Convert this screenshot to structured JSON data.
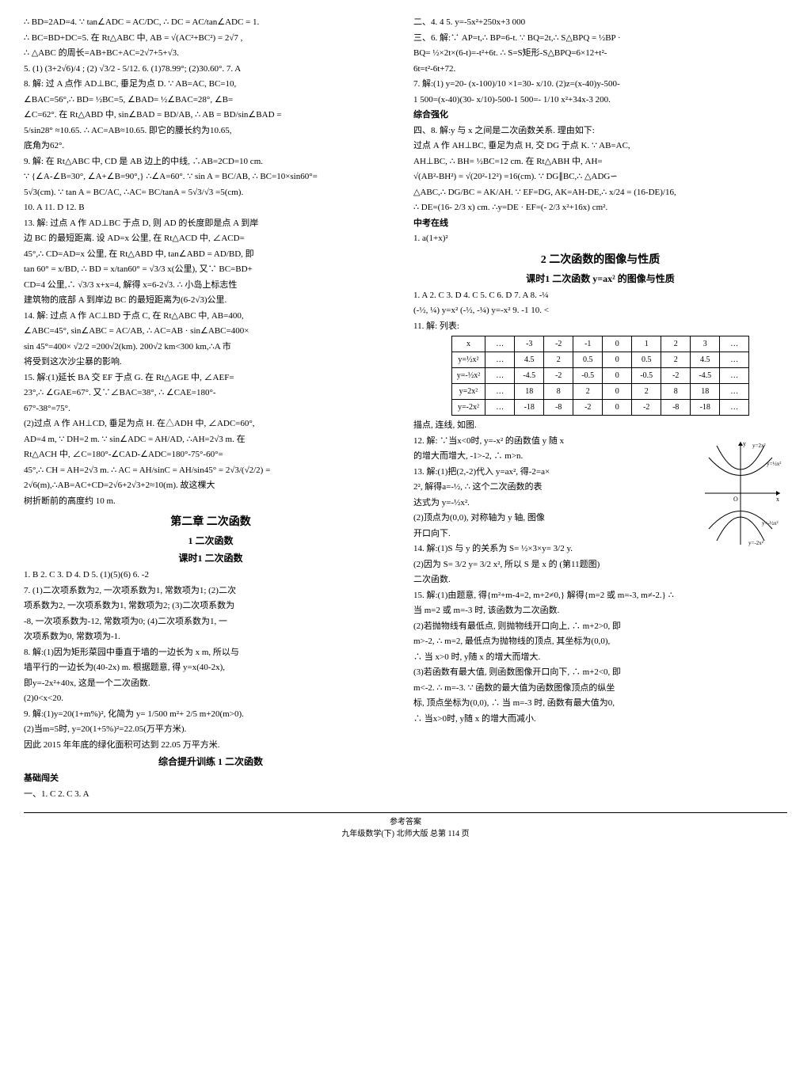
{
  "left": {
    "l1": "∴ BD=2AD=4. ∵ tan∠ADC = AC/DC, ∴ DC = AC/tan∠ADC = 1.",
    "l2": "∴ BC=BD+DC=5. 在 Rt△ABC 中, AB = √(AC²+BC²) = 2√7 ,",
    "l3": "∴ △ABC 的周长=AB+BC+AC=2√7+5+√3.",
    "l4": "5. (1) (3+2√6)/4 ; (2) √3/2 - 5/12.   6. (1)78.99°; (2)30.60°.   7. A",
    "l5": "8. 解: 过 A 点作 AD⊥BC, 垂足为点 D. ∵ AB=AC, BC=10,",
    "l6": "∠BAC=56°,∴ BD= ½BC=5, ∠BAD= ½∠BAC=28°, ∠B=",
    "l7": "∠C=62°. 在 Rt△ABD 中, sin∠BAD = BD/AB, ∴ AB = BD/sin∠BAD =",
    "l8": "5/sin28° ≈10.65. ∴ AC=AB≈10.65. 即它的腰长约为10.65,",
    "l9": "底角为62°.",
    "l10": "9. 解: 在 Rt△ABC 中, CD 是 AB 边上的中线, ∴AB=2CD=10 cm.",
    "l11": "∵ {∠A-∠B=30°, ∠A+∠B=90°,} ∴∠A=60°. ∵ sin A = BC/AB, ∴ BC=10×sin60°=",
    "l12": "5√3(cm). ∵ tan A = BC/AC, ∴AC= BC/tanA = 5√3/√3 =5(cm).",
    "l13": "10. A   11. D   12. B",
    "l14": "13. 解: 过点 A 作 AD⊥BC 于点 D, 则 AD 的长度即是点 A 到岸",
    "l15": "边 BC 的最短距离. 设 AD=x 公里, 在 Rt△ACD 中, ∠ACD=",
    "l16": "45°,∴ CD=AD=x 公里, 在 Rt△ABD 中, tan∠ABD = AD/BD, 即",
    "l17": "tan 60° = x/BD, ∴ BD = x/tan60° = √3/3 x(公里), 又∵ BC=BD+",
    "l18": "CD=4 公里,∴ √3/3 x+x=4, 解得 x=6-2√3. ∴ 小岛上标志性",
    "l19": "建筑物的底部 A 到岸边 BC 的最短距离为(6-2√3)公里.",
    "l20": "14. 解: 过点 A 作 AC⊥BD 于点 C, 在 Rt△ABC 中, AB=400,",
    "l21": "∠ABC=45°, sin∠ABC = AC/AB, ∴ AC=AB · sin∠ABC=400×",
    "l22": "sin 45°=400× √2/2 =200√2(km). 200√2 km<300 km,∴A 市",
    "l23": "将受到这次沙尘暴的影响.",
    "l24": "15. 解:(1)延长 BA 交 EF 于点 G. 在 Rt△AGE 中, ∠AEF=",
    "l25": "23°,∴ ∠GAE=67°. 又∵∠BAC=38°, ∴ ∠CAE=180°-",
    "l26": "67°-38°=75°.",
    "l27": "(2)过点 A 作 AH⊥CD, 垂足为点 H. 在△ADH 中, ∠ADC=60°,",
    "l28": "AD=4 m, ∵ DH=2 m. ∵ sin∠ADC = AH/AD, ∴AH=2√3 m. 在",
    "l29": "Rt△ACH 中, ∠C=180°-∠CAD-∠ADC=180°-75°-60°=",
    "l30": "45°,∴ CH = AH=2√3 m. ∴ AC = AH/sinC = AH/sin45° = 2√3/(√2/2) =",
    "l31": "2√6(m),∴AB=AC+CD=2√6+2√3+2≈10(m). 故这棵大",
    "l32": "树折断前的高度约 10 m.",
    "section2": "第二章  二次函数",
    "sub1": "1  二次函数",
    "sub2": "课时1  二次函数",
    "l33": "1. B   2. C   3. D   4. D   5. (1)(5)(6)   6. -2",
    "l34": "7. (1)二次项系数为2, 一次项系数为1, 常数项为1; (2)二次",
    "l35": "项系数为2, 一次项系数为1, 常数项为2; (3)二次项系数为",
    "l36": "-8, 一次项系数为-12, 常数项为0; (4)二次项系数为1, 一",
    "l37": "次项系数为0, 常数项为-1.",
    "l38": "8. 解:(1)因为矩形菜园中垂直于墙的一边长为 x m, 所以与",
    "l39": "墙平行的一边长为(40-2x) m. 根据题意, 得 y=x(40-2x),",
    "l40": "即y=-2x²+40x, 这是一个二次函数.",
    "l41": "(2)0<x<20.",
    "l42": "9. 解:(1)y=20(1+m%)², 化简为 y= 1/500 m²+ 2/5 m+20(m>0).",
    "l43": "(2)当m=5时, y=20(1+5%)²=22.05(万平方米).",
    "l44": "因此 2015 年年底的绿化面积可达到 22.05 万平方米.",
    "sub3": "综合提升训练  1  二次函数",
    "sub4": "基础闯关",
    "l45": "一、1. C   2. C   3. A"
  },
  "right": {
    "r1": "二、4. 4   5. y=-5x²+250x+3 000",
    "r2": "三、6. 解:∵ AP=t,∴ BP=6-t. ∵ BQ=2t,∴ S△BPQ = ½BP ·",
    "r3": "BQ= ½×2t×(6-t)=-t²+6t. ∴ S=S矩形-S△BPQ=6×12+t²-",
    "r4": "6t=t²-6t+72.",
    "r5": "7. 解:(1) y=20- (x-100)/10 ×1=30- x/10. (2)z=(x-40)y-500-",
    "r6": "1 500=(x-40)(30- x/10)-500-1 500=- 1/10 x²+34x-3 200.",
    "sub1": "综合强化",
    "r7": "四、8. 解:y 与 x 之间是二次函数关系. 理由如下:",
    "r8": "过点 A 作 AH⊥BC, 垂足为点 H, 交 DG 于点 K. ∵ AB=AC,",
    "r9": "AH⊥BC, ∴ BH= ½BC=12 cm. 在 Rt△ABH 中, AH=",
    "r10": "√(AB²-BH²) = √(20²-12²) =16(cm). ∵ DG∥BC,∴ △ADG∽",
    "r11": "△ABC,∴ DG/BC = AK/AH. ∵ EF=DG, AK=AH-DE,∴ x/24 = (16-DE)/16,",
    "r12": "∴ DE=(16- 2/3 x) cm. ∴y=DE · EF=(- 2/3 x²+16x) cm².",
    "sub2": "中考在线",
    "r13": "1. a(1+x)²",
    "section2": "2  二次函数的图像与性质",
    "sub3": "课时1  二次函数 y=ax² 的图像与性质",
    "r14": "1. A   2. C   3. D   4. C   5. C   6. D   7. A   8. -¼",
    "r15": "(-½, ¼)  y=x²  (-½, -¼)  y=-x²   9. -1   10. <",
    "r16": "11. 解: 列表:",
    "table": {
      "headers": [
        "x",
        "…",
        "-3",
        "-2",
        "-1",
        "0",
        "1",
        "2",
        "3",
        "…"
      ],
      "rows": [
        [
          "y=½x²",
          "…",
          "4.5",
          "2",
          "0.5",
          "0",
          "0.5",
          "2",
          "4.5",
          "…"
        ],
        [
          "y=-½x²",
          "…",
          "-4.5",
          "-2",
          "-0.5",
          "0",
          "-0.5",
          "-2",
          "-4.5",
          "…"
        ],
        [
          "y=2x²",
          "…",
          "18",
          "8",
          "2",
          "0",
          "2",
          "8",
          "18",
          "…"
        ],
        [
          "y=-2x²",
          "…",
          "-18",
          "-8",
          "-2",
          "0",
          "-2",
          "-8",
          "-18",
          "…"
        ]
      ]
    },
    "r17": "描点, 连线, 如图.",
    "r18": "12. 解: ∵当x<0时, y=-x² 的函数值 y 随 x",
    "r19": "的增大而增大, -1>-2, ∴ m>n.",
    "r20": "13. 解:(1)把(2,-2)代入 y=ax², 得-2=a×",
    "r21": "2², 解得a=-½, ∴ 这个二次函数的表",
    "r22": "达式为 y=-½x².",
    "r23": "(2)顶点为(0,0), 对称轴为 y 轴, 图像",
    "r24": "开口向下.",
    "r25": "14. 解:(1)S 与 y 的关系为 S= ½×3×y= 3/2 y.",
    "r26": "(2)因为 S= 3/2 y= 3/2 x², 所以 S 是 x 的  (第11题图)",
    "r27": "二次函数.",
    "r28": "15. 解:(1)由题意, 得{m²+m-4=2, m+2≠0,} 解得{m=2 或 m=-3, m≠-2.} ∴",
    "r29": "当 m=2 或 m=-3 时, 该函数为二次函数.",
    "r30": "(2)若抛物线有最低点, 则抛物线开口向上, ∴ m+2>0, 即",
    "r31": "m>-2, ∴ m=2, 最低点为抛物线的顶点, 其坐标为(0,0),",
    "r32": "∴ 当 x>0 时, y随 x 的增大而增大.",
    "r33": "(3)若函数有最大值, 则函数图像开口向下, ∴ m+2<0, 即",
    "r34": "m<-2. ∴ m=-3. ∵ 函数的最大值为函数图像顶点的纵坐",
    "r35": "标, 顶点坐标为(0,0), ∴ 当 m=-3 时, 函数有最大值为0,",
    "r36": "∴ 当x>0时, y随 x 的增大而减小."
  },
  "graph": {
    "labels": [
      "y=2x²",
      "y=½x²",
      "O",
      "x",
      "y=-½x²",
      "y=-2x²",
      "y"
    ],
    "colors": {
      "axis": "#000000",
      "curve": "#000000"
    }
  },
  "footer": {
    "line1": "参考答案",
    "line2": "九年级数学(下)  北师大版  总第 114 页"
  }
}
